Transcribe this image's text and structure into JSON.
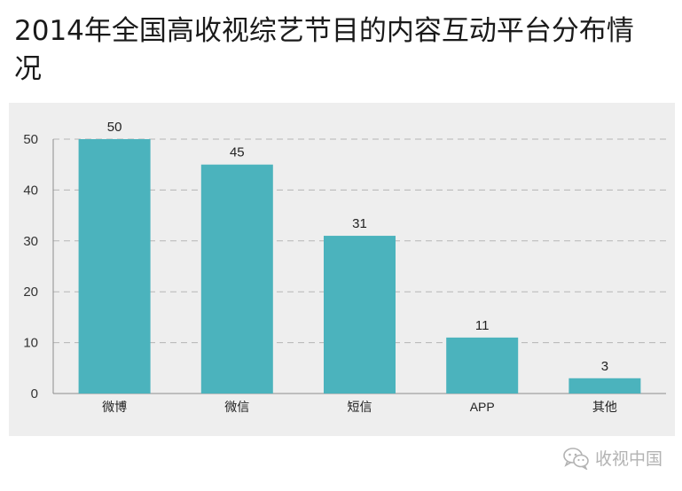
{
  "page": {
    "title": "2014年全国高收视综艺节目的内容互动平台分布情况",
    "watermark": "收视中国"
  },
  "chart_data": {
    "type": "bar",
    "title": "2014年全国高收视综艺节目的内容互动平台分布情况",
    "xlabel": "",
    "ylabel": "",
    "categories": [
      "微博",
      "微信",
      "短信",
      "APP",
      "其他"
    ],
    "values": [
      50,
      45,
      31,
      11,
      3
    ],
    "ylim": [
      0,
      50
    ],
    "yticks": [
      0,
      10,
      20,
      30,
      40,
      50
    ],
    "grid": true,
    "data_labels": true,
    "legend": "none",
    "bar_color": "#4bb3bd",
    "background_color": "#eeeeee"
  },
  "icons": {
    "watermark_icon": "wechat-icon"
  }
}
